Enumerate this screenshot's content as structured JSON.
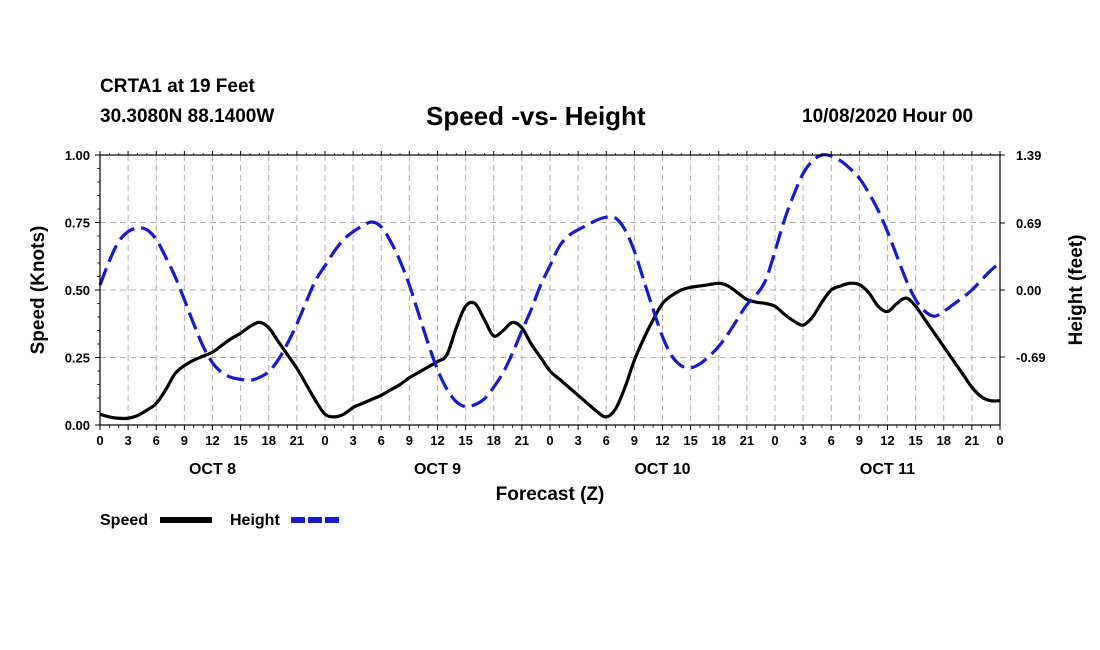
{
  "header": {
    "station": "CRTA1 at 19 Feet",
    "coords": "30.3080N 88.1400W",
    "title": "Speed -vs- Height",
    "datetime": "10/08/2020 Hour 00"
  },
  "chart_data": {
    "type": "line",
    "title": "Speed -vs- Height",
    "xlabel": "Forecast (Z)",
    "ylabel_left": "Speed (Knots)",
    "ylabel_right": "Height (feet)",
    "x_range_hours": [
      0,
      96
    ],
    "x_tick_step_hours": 3,
    "x_tick_labels": [
      "0",
      "3",
      "6",
      "9",
      "12",
      "15",
      "18",
      "21",
      "0",
      "3",
      "6",
      "9",
      "12",
      "15",
      "18",
      "21",
      "0",
      "3",
      "6",
      "9",
      "12",
      "15",
      "18",
      "21",
      "0",
      "3",
      "6",
      "9",
      "12",
      "15",
      "18",
      "21",
      "0"
    ],
    "day_labels": [
      {
        "label": "OCT 8",
        "hour": 12
      },
      {
        "label": "OCT 9",
        "hour": 36
      },
      {
        "label": "OCT 10",
        "hour": 60
      },
      {
        "label": "OCT 11",
        "hour": 84
      }
    ],
    "y_left": {
      "range": [
        0,
        1
      ],
      "ticks": [
        0,
        0.25,
        0.5,
        0.75,
        1.0
      ],
      "tick_labels": [
        "0.00",
        "0.25",
        "0.50",
        "0.75",
        "1.00"
      ]
    },
    "y_right": {
      "range": [
        -1.39,
        1.39
      ],
      "ticks": [
        -0.69,
        0.0,
        0.69,
        1.39
      ],
      "tick_labels": [
        "-0.69",
        "0.00",
        "0.69",
        "1.39"
      ]
    },
    "grid": true,
    "legend": {
      "placement": "bottom-left",
      "entries": [
        {
          "name": "Speed",
          "color": "#000000",
          "style": "solid"
        },
        {
          "name": "Height",
          "color": "#1a1acc",
          "style": "dashed"
        }
      ]
    },
    "series": [
      {
        "name": "Speed",
        "axis": "left",
        "color": "#000000",
        "style": "solid",
        "points": [
          [
            0,
            0.04
          ],
          [
            1,
            0.03
          ],
          [
            2,
            0.025
          ],
          [
            3,
            0.025
          ],
          [
            4,
            0.035
          ],
          [
            5,
            0.055
          ],
          [
            6,
            0.08
          ],
          [
            7,
            0.13
          ],
          [
            8,
            0.19
          ],
          [
            9,
            0.22
          ],
          [
            10,
            0.24
          ],
          [
            11,
            0.255
          ],
          [
            12,
            0.27
          ],
          [
            13,
            0.295
          ],
          [
            14,
            0.32
          ],
          [
            15,
            0.34
          ],
          [
            16,
            0.365
          ],
          [
            17,
            0.38
          ],
          [
            18,
            0.36
          ],
          [
            19,
            0.31
          ],
          [
            20,
            0.26
          ],
          [
            21,
            0.21
          ],
          [
            22,
            0.15
          ],
          [
            23,
            0.09
          ],
          [
            24,
            0.04
          ],
          [
            25,
            0.03
          ],
          [
            26,
            0.04
          ],
          [
            27,
            0.065
          ],
          [
            28,
            0.08
          ],
          [
            29,
            0.095
          ],
          [
            30,
            0.11
          ],
          [
            31,
            0.13
          ],
          [
            32,
            0.15
          ],
          [
            33,
            0.175
          ],
          [
            34,
            0.195
          ],
          [
            35,
            0.215
          ],
          [
            36,
            0.235
          ],
          [
            37,
            0.26
          ],
          [
            38,
            0.36
          ],
          [
            39,
            0.44
          ],
          [
            40,
            0.45
          ],
          [
            41,
            0.39
          ],
          [
            42,
            0.33
          ],
          [
            43,
            0.35
          ],
          [
            44,
            0.38
          ],
          [
            45,
            0.36
          ],
          [
            46,
            0.3
          ],
          [
            47,
            0.25
          ],
          [
            48,
            0.2
          ],
          [
            49,
            0.17
          ],
          [
            50,
            0.14
          ],
          [
            51,
            0.11
          ],
          [
            52,
            0.08
          ],
          [
            53,
            0.05
          ],
          [
            54,
            0.03
          ],
          [
            55,
            0.06
          ],
          [
            56,
            0.14
          ],
          [
            57,
            0.24
          ],
          [
            58,
            0.32
          ],
          [
            59,
            0.39
          ],
          [
            60,
            0.45
          ],
          [
            61,
            0.48
          ],
          [
            62,
            0.5
          ],
          [
            63,
            0.51
          ],
          [
            64,
            0.515
          ],
          [
            65,
            0.52
          ],
          [
            66,
            0.525
          ],
          [
            67,
            0.515
          ],
          [
            68,
            0.49
          ],
          [
            69,
            0.465
          ],
          [
            70,
            0.455
          ],
          [
            71,
            0.45
          ],
          [
            72,
            0.44
          ],
          [
            73,
            0.41
          ],
          [
            74,
            0.385
          ],
          [
            75,
            0.37
          ],
          [
            76,
            0.4
          ],
          [
            77,
            0.455
          ],
          [
            78,
            0.5
          ],
          [
            79,
            0.515
          ],
          [
            80,
            0.525
          ],
          [
            81,
            0.52
          ],
          [
            82,
            0.49
          ],
          [
            83,
            0.44
          ],
          [
            84,
            0.42
          ],
          [
            85,
            0.45
          ],
          [
            86,
            0.47
          ],
          [
            87,
            0.44
          ],
          [
            88,
            0.39
          ],
          [
            89,
            0.34
          ],
          [
            90,
            0.29
          ],
          [
            91,
            0.24
          ],
          [
            92,
            0.19
          ],
          [
            93,
            0.14
          ],
          [
            94,
            0.105
          ],
          [
            95,
            0.09
          ],
          [
            96,
            0.09
          ]
        ]
      },
      {
        "name": "Height",
        "axis": "right",
        "color": "#1a1acc",
        "style": "dashed",
        "points": [
          [
            0,
            0.05
          ],
          [
            1,
            0.3
          ],
          [
            2,
            0.5
          ],
          [
            3,
            0.6
          ],
          [
            4,
            0.64
          ],
          [
            5,
            0.62
          ],
          [
            6,
            0.52
          ],
          [
            7,
            0.34
          ],
          [
            8,
            0.14
          ],
          [
            9,
            -0.1
          ],
          [
            10,
            -0.35
          ],
          [
            11,
            -0.58
          ],
          [
            12,
            -0.75
          ],
          [
            13,
            -0.85
          ],
          [
            14,
            -0.9
          ],
          [
            15,
            -0.92
          ],
          [
            16,
            -0.93
          ],
          [
            17,
            -0.9
          ],
          [
            18,
            -0.84
          ],
          [
            19,
            -0.72
          ],
          [
            20,
            -0.55
          ],
          [
            21,
            -0.35
          ],
          [
            22,
            -0.12
          ],
          [
            23,
            0.1
          ],
          [
            24,
            0.25
          ],
          [
            25,
            0.4
          ],
          [
            26,
            0.52
          ],
          [
            27,
            0.6
          ],
          [
            28,
            0.66
          ],
          [
            29,
            0.7
          ],
          [
            30,
            0.65
          ],
          [
            31,
            0.5
          ],
          [
            32,
            0.3
          ],
          [
            33,
            0.05
          ],
          [
            34,
            -0.25
          ],
          [
            35,
            -0.55
          ],
          [
            36,
            -0.82
          ],
          [
            37,
            -1.02
          ],
          [
            38,
            -1.15
          ],
          [
            39,
            -1.2
          ],
          [
            40,
            -1.18
          ],
          [
            41,
            -1.12
          ],
          [
            42,
            -1.0
          ],
          [
            43,
            -0.85
          ],
          [
            44,
            -0.65
          ],
          [
            45,
            -0.42
          ],
          [
            46,
            -0.2
          ],
          [
            47,
            0.05
          ],
          [
            48,
            0.25
          ],
          [
            49,
            0.45
          ],
          [
            50,
            0.56
          ],
          [
            51,
            0.62
          ],
          [
            52,
            0.67
          ],
          [
            53,
            0.72
          ],
          [
            54,
            0.75
          ],
          [
            55,
            0.74
          ],
          [
            56,
            0.62
          ],
          [
            57,
            0.4
          ],
          [
            58,
            0.1
          ],
          [
            59,
            -0.2
          ],
          [
            60,
            -0.48
          ],
          [
            61,
            -0.68
          ],
          [
            62,
            -0.78
          ],
          [
            63,
            -0.8
          ],
          [
            64,
            -0.76
          ],
          [
            65,
            -0.68
          ],
          [
            66,
            -0.58
          ],
          [
            67,
            -0.45
          ],
          [
            68,
            -0.3
          ],
          [
            69,
            -0.15
          ],
          [
            70,
            -0.05
          ],
          [
            71,
            0.1
          ],
          [
            72,
            0.4
          ],
          [
            73,
            0.72
          ],
          [
            74,
            0.98
          ],
          [
            75,
            1.2
          ],
          [
            76,
            1.33
          ],
          [
            77,
            1.39
          ],
          [
            78,
            1.38
          ],
          [
            79,
            1.33
          ],
          [
            80,
            1.25
          ],
          [
            81,
            1.15
          ],
          [
            82,
            1.0
          ],
          [
            83,
            0.82
          ],
          [
            84,
            0.6
          ],
          [
            85,
            0.35
          ],
          [
            86,
            0.1
          ],
          [
            87,
            -0.1
          ],
          [
            88,
            -0.22
          ],
          [
            89,
            -0.27
          ],
          [
            90,
            -0.22
          ],
          [
            91,
            -0.15
          ],
          [
            92,
            -0.08
          ],
          [
            93,
            0.0
          ],
          [
            94,
            0.1
          ],
          [
            95,
            0.2
          ],
          [
            96,
            0.28
          ]
        ]
      }
    ]
  }
}
